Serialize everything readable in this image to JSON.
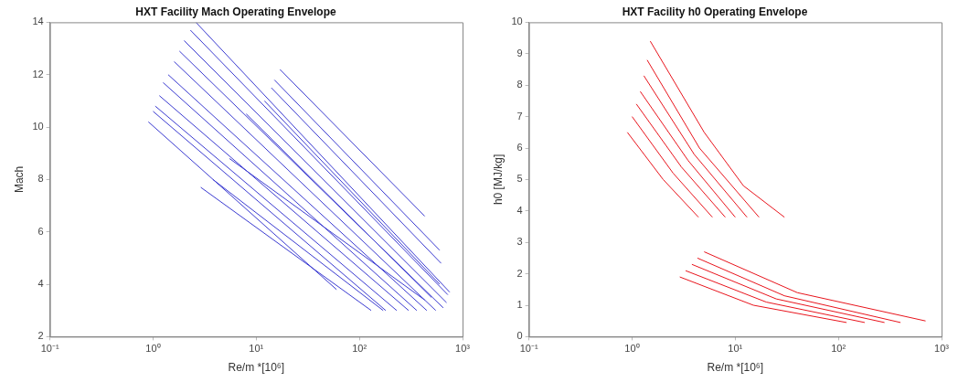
{
  "chart_data": [
    {
      "type": "line",
      "title": "HXT Facility Mach Operating Envelope",
      "xlabel": "Re/m *[10⁶]",
      "ylabel": "Mach",
      "log": "x",
      "grid": false,
      "legend": false,
      "marker": "none",
      "line_style": "solid",
      "xlim": [
        0.1,
        1000
      ],
      "xticks": [
        {
          "value": 0.1,
          "label": "10⁻¹"
        },
        {
          "value": 1,
          "label": "10⁰"
        },
        {
          "value": 10,
          "label": "10¹"
        },
        {
          "value": 100,
          "label": "10²"
        },
        {
          "value": 1000,
          "label": "10³"
        }
      ],
      "ylim": [
        2,
        14
      ],
      "yticks": [
        2,
        4,
        6,
        8,
        10,
        12,
        14
      ],
      "series": [
        {
          "color": "#3a3ad0",
          "x": [
            0.9,
            60
          ],
          "values": [
            10.2,
            3.8
          ]
        },
        {
          "color": "#3a3ad0",
          "x": [
            1.0,
            180
          ],
          "values": [
            10.6,
            3.0
          ]
        },
        {
          "color": "#3a3ad0",
          "x": [
            1.05,
            230
          ],
          "values": [
            10.8,
            3.0
          ]
        },
        {
          "color": "#3a3ad0",
          "x": [
            1.15,
            300
          ],
          "values": [
            11.2,
            3.0
          ]
        },
        {
          "color": "#3a3ad0",
          "x": [
            1.25,
            360
          ],
          "values": [
            11.7,
            3.0
          ]
        },
        {
          "color": "#3a3ad0",
          "x": [
            1.4,
            450
          ],
          "values": [
            12.0,
            3.0
          ]
        },
        {
          "color": "#3a3ad0",
          "x": [
            1.6,
            550
          ],
          "values": [
            12.5,
            3.0
          ]
        },
        {
          "color": "#3a3ad0",
          "x": [
            1.8,
            650
          ],
          "values": [
            12.9,
            3.1
          ]
        },
        {
          "color": "#3a3ad0",
          "x": [
            2.0,
            700
          ],
          "values": [
            13.3,
            3.3
          ]
        },
        {
          "color": "#3a3ad0",
          "x": [
            2.3,
            720
          ],
          "values": [
            13.7,
            3.6
          ]
        },
        {
          "color": "#3a3ad0",
          "x": [
            2.6,
            750
          ],
          "values": [
            14.0,
            3.7
          ]
        },
        {
          "color": "#3a3ad0",
          "x": [
            2.9,
            130
          ],
          "values": [
            7.7,
            3.0
          ]
        },
        {
          "color": "#3a3ad0",
          "x": [
            3.8,
            170
          ],
          "values": [
            8.0,
            3.0
          ]
        },
        {
          "color": "#3a3ad0",
          "x": [
            5.5,
            430
          ],
          "values": [
            8.8,
            3.4
          ]
        },
        {
          "color": "#3a3ad0",
          "x": [
            8,
            500
          ],
          "values": [
            10.5,
            3.5
          ]
        },
        {
          "color": "#3a3ad0",
          "x": [
            12,
            600
          ],
          "values": [
            11.0,
            4.0
          ]
        },
        {
          "color": "#3a3ad0",
          "x": [
            14,
            620
          ],
          "values": [
            11.5,
            4.8
          ]
        },
        {
          "color": "#3a3ad0",
          "x": [
            15,
            600
          ],
          "values": [
            11.8,
            5.3
          ]
        },
        {
          "color": "#3a3ad0",
          "x": [
            17,
            430
          ],
          "values": [
            12.2,
            6.6
          ]
        }
      ]
    },
    {
      "type": "line",
      "title": "HXT Facility h0 Operating Envelope",
      "xlabel": "Re/m *[10⁶]",
      "ylabel": "h0 [MJ/kg]",
      "log": "x",
      "grid": false,
      "legend": false,
      "marker": "none",
      "line_style": "solid",
      "xlim": [
        0.1,
        1000
      ],
      "xticks": [
        {
          "value": 0.1,
          "label": "10⁻¹"
        },
        {
          "value": 1,
          "label": "10⁰"
        },
        {
          "value": 10,
          "label": "10¹"
        },
        {
          "value": 100,
          "label": "10²"
        },
        {
          "value": 1000,
          "label": "10³"
        }
      ],
      "ylim": [
        0,
        10
      ],
      "yticks": [
        0,
        1,
        2,
        3,
        4,
        5,
        6,
        7,
        8,
        9,
        10
      ],
      "series": [
        {
          "color": "#e8141c",
          "x": [
            0.9,
            2,
            4.4
          ],
          "values": [
            6.5,
            5.0,
            3.8
          ]
        },
        {
          "color": "#e8141c",
          "x": [
            1.0,
            2.5,
            6
          ],
          "values": [
            7.0,
            5.2,
            3.8
          ]
        },
        {
          "color": "#e8141c",
          "x": [
            1.1,
            3,
            8
          ],
          "values": [
            7.4,
            5.4,
            3.8
          ]
        },
        {
          "color": "#e8141c",
          "x": [
            1.2,
            3.5,
            10
          ],
          "values": [
            7.8,
            5.6,
            3.8
          ]
        },
        {
          "color": "#e8141c",
          "x": [
            1.3,
            4,
            13
          ],
          "values": [
            8.3,
            5.8,
            3.8
          ]
        },
        {
          "color": "#e8141c",
          "x": [
            1.4,
            4.5,
            17
          ],
          "values": [
            8.8,
            6.0,
            3.8
          ]
        },
        {
          "color": "#e8141c",
          "x": [
            1.5,
            5,
            12,
            30
          ],
          "values": [
            9.4,
            6.5,
            4.8,
            3.8
          ]
        },
        {
          "color": "#e8141c",
          "x": [
            2.9,
            15,
            120
          ],
          "values": [
            1.9,
            1.0,
            0.45
          ]
        },
        {
          "color": "#e8141c",
          "x": [
            3.3,
            20,
            180
          ],
          "values": [
            2.1,
            1.1,
            0.45
          ]
        },
        {
          "color": "#e8141c",
          "x": [
            3.8,
            25,
            280
          ],
          "values": [
            2.3,
            1.2,
            0.45
          ]
        },
        {
          "color": "#e8141c",
          "x": [
            4.3,
            30,
            400
          ],
          "values": [
            2.5,
            1.3,
            0.45
          ]
        },
        {
          "color": "#e8141c",
          "x": [
            5,
            40,
            700
          ],
          "values": [
            2.7,
            1.4,
            0.5
          ]
        }
      ]
    }
  ]
}
